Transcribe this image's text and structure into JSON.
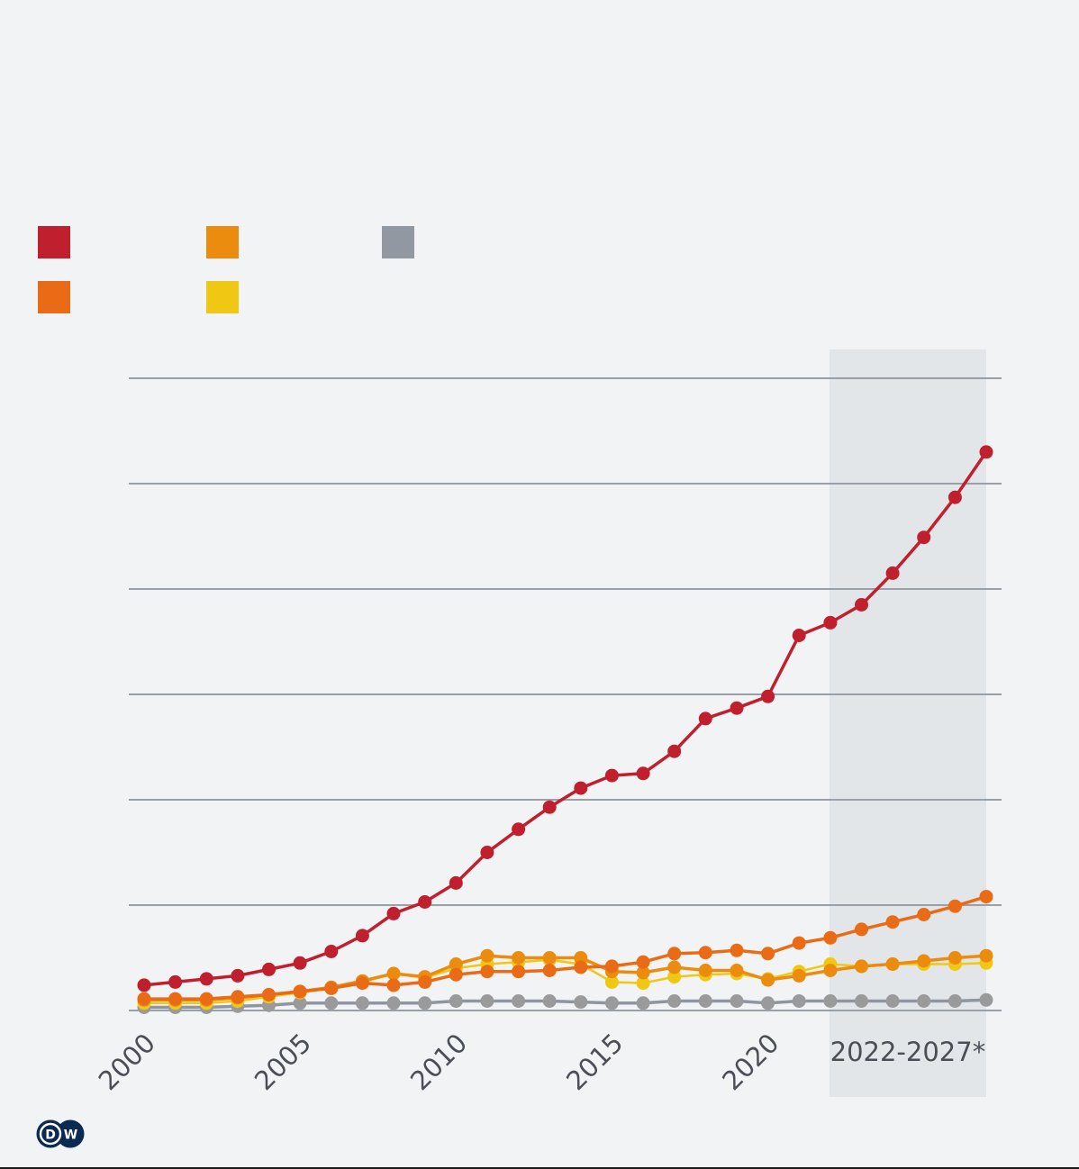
{
  "legend": {
    "items": [
      {
        "series": "red",
        "color": "#c0202e"
      },
      {
        "series": "light-orange",
        "color": "#eb8c0f"
      },
      {
        "series": "gray",
        "color": "#9298a1"
      },
      {
        "series": "dark-orange",
        "color": "#ea6b16"
      },
      {
        "series": "yellow",
        "color": "#f0c814"
      }
    ]
  },
  "logo": {
    "text": "DW",
    "color": "#0b2a52"
  },
  "chart_data": {
    "type": "line",
    "title": "",
    "xlabel": "",
    "ylabel": "",
    "x": [
      2000,
      2001,
      2002,
      2003,
      2004,
      2005,
      2006,
      2007,
      2008,
      2009,
      2010,
      2011,
      2012,
      2013,
      2014,
      2015,
      2016,
      2017,
      2018,
      2019,
      2020,
      2021,
      2022,
      2023,
      2024,
      2025,
      2026,
      2027
    ],
    "xticks": [
      {
        "value": 2000,
        "label": "2000"
      },
      {
        "value": 2005,
        "label": "2005"
      },
      {
        "value": 2010,
        "label": "2010"
      },
      {
        "value": 2015,
        "label": "2015"
      },
      {
        "value": 2020,
        "label": "2020"
      }
    ],
    "forecast_label": "2022-2027*",
    "forecast_range": [
      2022,
      2027
    ],
    "forecast_color": "#e3e6e9",
    "ylim": [
      0,
      6
    ],
    "yticks": [
      0,
      1,
      2,
      3,
      4,
      5,
      6
    ],
    "ytick_labels_shown": false,
    "grid": true,
    "grid_color": "#9aa0a8",
    "legend_position": "top-left",
    "series": [
      {
        "name": "gray",
        "color": "#9a9a9a",
        "line_color": "#8f96a0",
        "values": [
          0.03,
          0.03,
          0.03,
          0.04,
          0.05,
          0.07,
          0.07,
          0.07,
          0.07,
          0.07,
          0.09,
          0.09,
          0.09,
          0.09,
          0.08,
          0.07,
          0.07,
          0.09,
          0.09,
          0.09,
          0.07,
          0.09,
          0.09,
          0.09,
          0.09,
          0.09,
          0.09,
          0.1
        ]
      },
      {
        "name": "yellow",
        "color": "#f0c814",
        "line_color": "#f0c814",
        "values": [
          0.07,
          0.07,
          0.07,
          0.09,
          0.13,
          0.17,
          0.21,
          0.27,
          0.35,
          0.31,
          0.4,
          0.44,
          0.46,
          0.48,
          0.44,
          0.27,
          0.26,
          0.32,
          0.34,
          0.35,
          0.3,
          0.37,
          0.44,
          0.42,
          0.44,
          0.44,
          0.44,
          0.45
        ]
      },
      {
        "name": "light-orange",
        "color": "#eb8c0f",
        "line_color": "#eb8c0f",
        "values": [
          0.1,
          0.1,
          0.1,
          0.12,
          0.15,
          0.18,
          0.22,
          0.28,
          0.35,
          0.32,
          0.44,
          0.52,
          0.5,
          0.5,
          0.5,
          0.37,
          0.36,
          0.41,
          0.38,
          0.38,
          0.29,
          0.33,
          0.38,
          0.42,
          0.44,
          0.47,
          0.5,
          0.52
        ]
      },
      {
        "name": "dark-orange",
        "color": "#ea6b16",
        "line_color": "#ea6b16",
        "values": [
          0.11,
          0.11,
          0.11,
          0.13,
          0.15,
          0.18,
          0.21,
          0.26,
          0.24,
          0.27,
          0.34,
          0.37,
          0.37,
          0.38,
          0.41,
          0.42,
          0.46,
          0.54,
          0.55,
          0.57,
          0.54,
          0.64,
          0.69,
          0.77,
          0.84,
          0.91,
          0.99,
          1.08
        ]
      },
      {
        "name": "red",
        "color": "#c0202e",
        "line_color": "#c0202e",
        "values": [
          0.24,
          0.27,
          0.3,
          0.33,
          0.39,
          0.45,
          0.56,
          0.71,
          0.92,
          1.03,
          1.21,
          1.5,
          1.72,
          1.93,
          2.11,
          2.23,
          2.25,
          2.46,
          2.77,
          2.87,
          2.98,
          3.56,
          3.68,
          3.85,
          4.15,
          4.49,
          4.87,
          5.3
        ]
      }
    ]
  }
}
